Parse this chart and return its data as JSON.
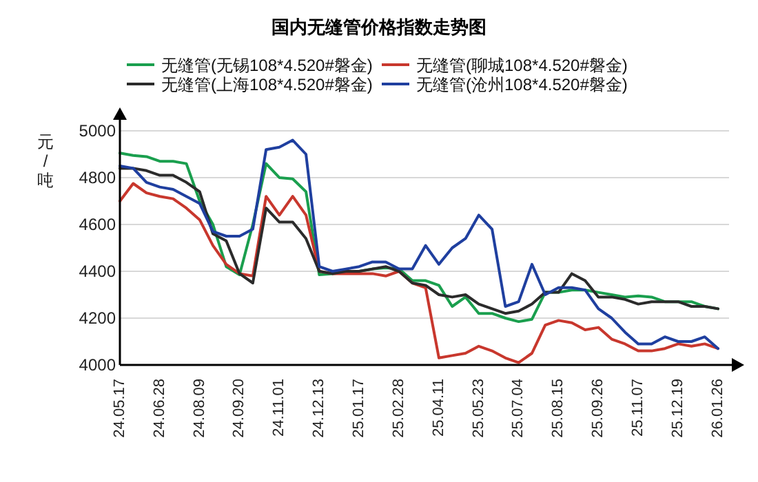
{
  "chart_data": {
    "type": "line",
    "title": "国内无缝管价格指数走势图",
    "ylabel": "元/吨",
    "categories": [
      "24.05.17",
      null,
      null,
      "24.06.28",
      null,
      null,
      "24.08.09",
      null,
      null,
      "24.09.20",
      null,
      null,
      "24.11.01",
      null,
      null,
      "24.12.13",
      null,
      null,
      "25.01.17",
      null,
      null,
      "25.02.28",
      null,
      null,
      "25.04.11",
      null,
      null,
      "25.05.23",
      null,
      null,
      "25.07.04",
      null,
      null,
      "25.08.15",
      null,
      null,
      "25.09.26",
      null,
      null,
      "25.11.07",
      null,
      null,
      "25.12.19",
      null,
      null,
      "26.01.26"
    ],
    "series": [
      {
        "name": "无缝管(无锡108*4.520#磐金)",
        "color": "#1a9f4e",
        "values": [
          4905,
          4895,
          4890,
          4870,
          4870,
          4860,
          4700,
          4600,
          4420,
          4385,
          4600,
          4860,
          4800,
          4795,
          4740,
          4385,
          4390,
          4395,
          4400,
          4410,
          4415,
          4410,
          4360,
          4360,
          4340,
          4250,
          4290,
          4220,
          4220,
          4200,
          4185,
          4195,
          4310,
          4310,
          4320,
          4320,
          4310,
          4300,
          4290,
          4295,
          4290,
          4270,
          4270,
          4270,
          4250,
          4240
        ]
      },
      {
        "name": "无缝管(聊城108*4.520#磐金)",
        "color": "#c8372d",
        "values": [
          4700,
          4775,
          4735,
          4720,
          4710,
          4670,
          4620,
          4510,
          4430,
          4390,
          4380,
          4720,
          4640,
          4720,
          4640,
          4400,
          4390,
          4390,
          4390,
          4390,
          4380,
          4400,
          4350,
          4330,
          4030,
          4040,
          4050,
          4080,
          4060,
          4030,
          4010,
          4050,
          4170,
          4190,
          4180,
          4150,
          4160,
          4110,
          4090,
          4060,
          4060,
          4070,
          4090,
          4080,
          4090,
          4070
        ]
      },
      {
        "name": "无缝管(上海108*4.520#磐金)",
        "color": "#2b2b2b",
        "values": [
          4840,
          4840,
          4830,
          4810,
          4810,
          4780,
          4740,
          4560,
          4530,
          4390,
          4350,
          4670,
          4610,
          4610,
          4540,
          4400,
          4390,
          4400,
          4400,
          4410,
          4420,
          4400,
          4350,
          4340,
          4300,
          4290,
          4300,
          4260,
          4240,
          4220,
          4230,
          4260,
          4310,
          4310,
          4390,
          4360,
          4290,
          4290,
          4280,
          4260,
          4270,
          4270,
          4270,
          4250,
          4250,
          4240
        ]
      },
      {
        "name": "无缝管(沧州108*4.520#磐金)",
        "color": "#1f3f9f",
        "values": [
          4850,
          4840,
          4780,
          4760,
          4750,
          4720,
          4690,
          4570,
          4550,
          4550,
          4580,
          4920,
          4930,
          4960,
          4900,
          4420,
          4400,
          4410,
          4420,
          4440,
          4440,
          4410,
          4410,
          4510,
          4430,
          4500,
          4540,
          4640,
          4580,
          4250,
          4270,
          4430,
          4300,
          4330,
          4330,
          4320,
          4240,
          4200,
          4140,
          4090,
          4090,
          4120,
          4100,
          4100,
          4120,
          4070
        ]
      }
    ],
    "ylim": [
      4000,
      5000
    ],
    "yticks": [
      4000,
      4200,
      4400,
      4600,
      4800,
      5000
    ],
    "grid": "y",
    "legend": "top"
  }
}
